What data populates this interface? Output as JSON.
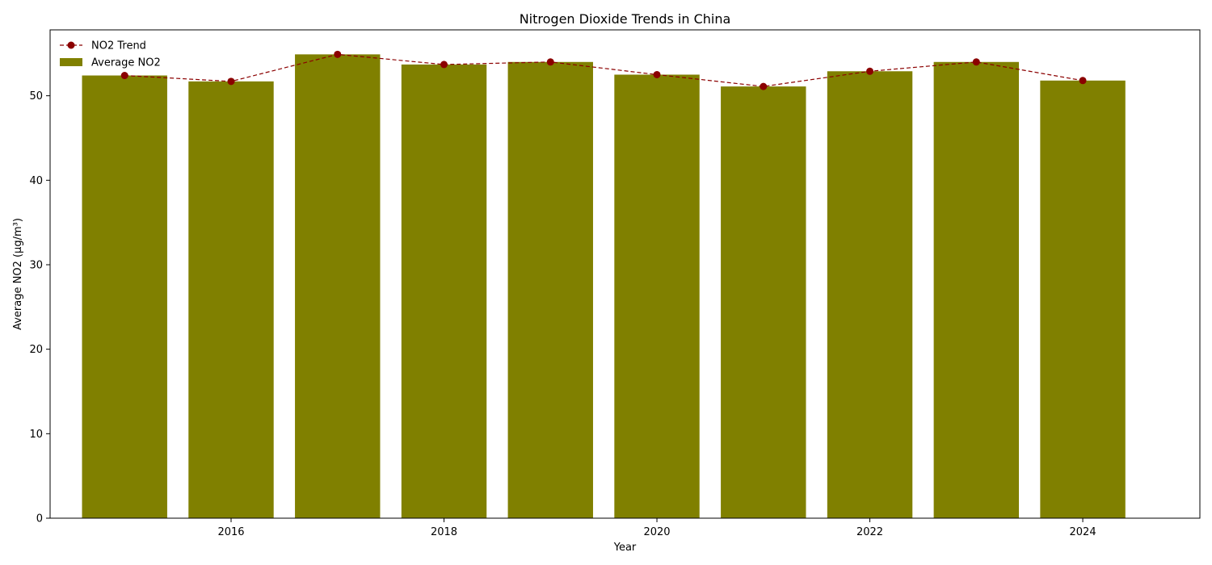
{
  "chart_data": {
    "type": "bar",
    "title": "Nitrogen Dioxide Trends in China",
    "xlabel": "Year",
    "ylabel": "Average NO2 (µg/m³)",
    "x": [
      2015,
      2016,
      2017,
      2018,
      2019,
      2020,
      2021,
      2022,
      2023,
      2024
    ],
    "xticks": [
      2016,
      2018,
      2020,
      2022,
      2024
    ],
    "xlim": [
      2014.3,
      2025.1
    ],
    "yticks": [
      0,
      10,
      20,
      30,
      40,
      50
    ],
    "ylim": [
      0,
      57.8
    ],
    "grid": false,
    "legend_position": "top-left",
    "series": [
      {
        "name": "NO2 Trend",
        "kind": "line",
        "style": "dashed",
        "marker": "circle",
        "color": "#8b0000",
        "values": [
          52.4,
          51.7,
          54.9,
          53.7,
          54.0,
          52.5,
          51.1,
          52.9,
          54.0,
          51.8
        ]
      },
      {
        "name": "Average NO2",
        "kind": "bar",
        "color": "#808000",
        "values": [
          52.4,
          51.7,
          54.9,
          53.7,
          54.0,
          52.5,
          51.1,
          52.9,
          54.0,
          51.8
        ]
      }
    ]
  }
}
